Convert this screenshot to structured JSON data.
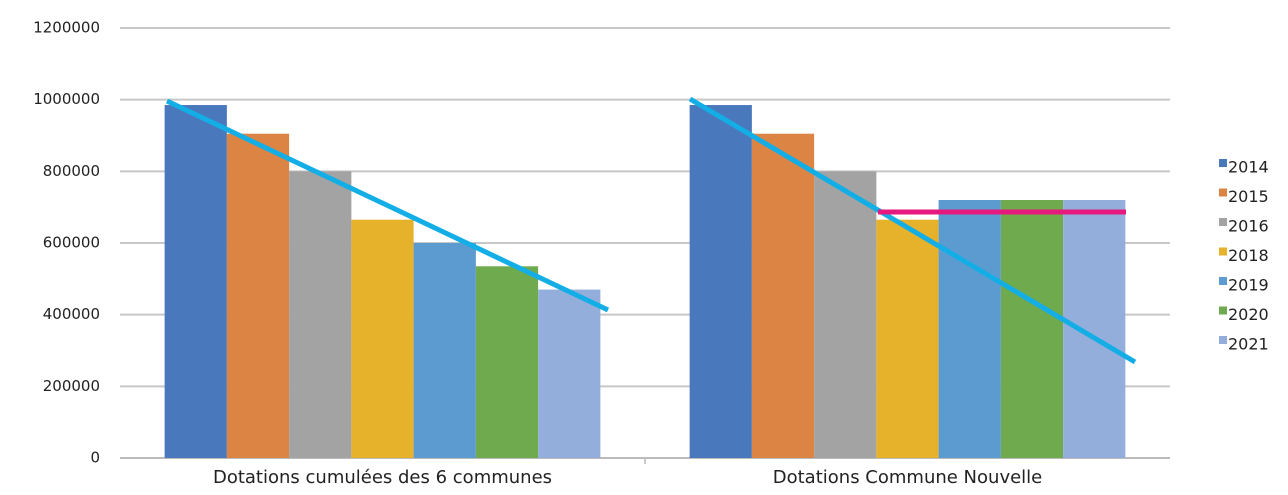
{
  "chart_data": {
    "type": "bar",
    "categories": [
      "Dotations cumulées des 6 communes",
      "Dotations Commune Nouvelle"
    ],
    "series": [
      {
        "name": "2014",
        "color": "#4a78bd",
        "values": [
          985000,
          985000
        ]
      },
      {
        "name": "2015",
        "color": "#dc8444",
        "values": [
          905000,
          905000
        ]
      },
      {
        "name": "2016",
        "color": "#a3a3a3",
        "values": [
          800000,
          800000
        ]
      },
      {
        "name": "2018",
        "color": "#e6b22c",
        "values": [
          665000,
          665000
        ]
      },
      {
        "name": "2019",
        "color": "#5b9bd0",
        "values": [
          600000,
          720000
        ]
      },
      {
        "name": "2020",
        "color": "#6faa4f",
        "values": [
          535000,
          720000
        ]
      },
      {
        "name": "2021",
        "color": "#93aedb",
        "values": [
          470000,
          720000
        ]
      }
    ],
    "ylim": [
      0,
      1200000
    ],
    "yticks": [
      0,
      200000,
      400000,
      600000,
      800000,
      1000000,
      1200000
    ],
    "grid": true,
    "legend": "right"
  }
}
